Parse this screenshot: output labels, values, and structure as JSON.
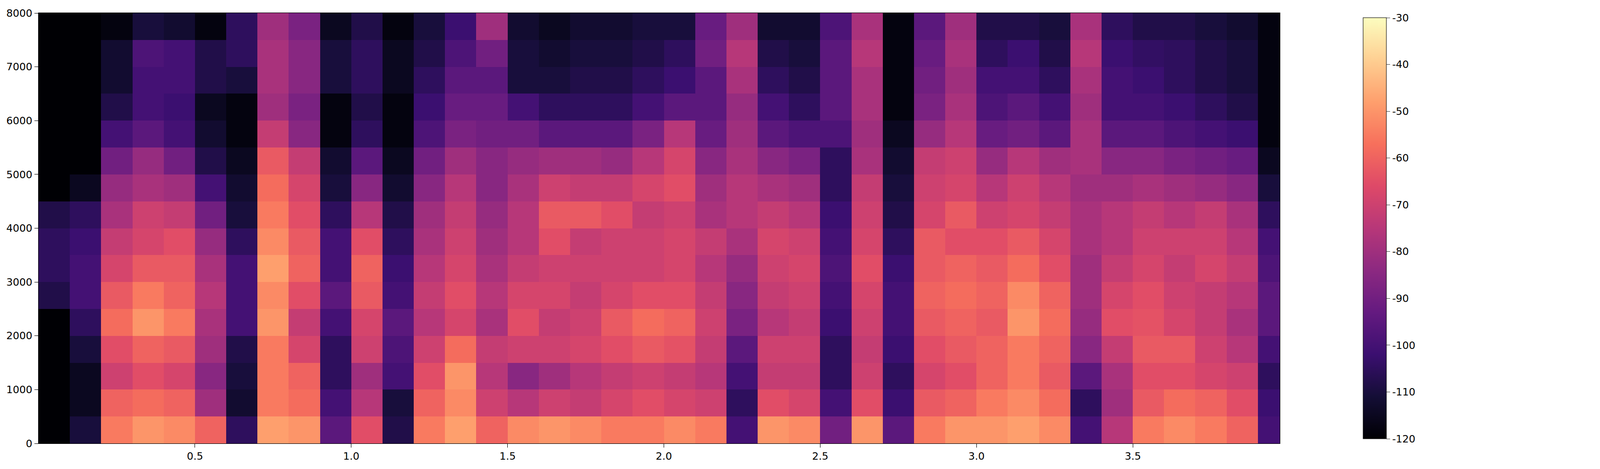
{
  "chart_data": {
    "type": "heatmap",
    "x": [
      0.05,
      0.15,
      0.25,
      0.35,
      0.45,
      0.55,
      0.65,
      0.75,
      0.85,
      0.95,
      1.05,
      1.15,
      1.25,
      1.35,
      1.45,
      1.55,
      1.65,
      1.75,
      1.85,
      1.95,
      2.05,
      2.15,
      2.25,
      2.35,
      2.45,
      2.55,
      2.65,
      2.75,
      2.85,
      2.95,
      3.05,
      3.15,
      3.25,
      3.35,
      3.45,
      3.55,
      3.65,
      3.75,
      3.85,
      3.95
    ],
    "y": [
      250,
      750,
      1250,
      1750,
      2250,
      2750,
      3250,
      3750,
      4250,
      4750,
      5250,
      5750,
      6250,
      6750,
      7250,
      7750
    ],
    "cells": [
      [
        -120,
        -120,
        -120,
        -120,
        -120,
        -108,
        -105,
        -105,
        -108,
        -120,
        -120,
        -120,
        -120,
        -120,
        -120,
        -120
      ],
      [
        -110,
        -115,
        -115,
        -110,
        -105,
        -100,
        -100,
        -102,
        -105,
        -115,
        -120,
        -120,
        -120,
        -120,
        -120,
        -120
      ],
      [
        -55,
        -60,
        -70,
        -65,
        -58,
        -62,
        -68,
        -72,
        -78,
        -82,
        -90,
        -100,
        -108,
        -112,
        -112,
        -118
      ],
      [
        -50,
        -58,
        -65,
        -60,
        -50,
        -55,
        -62,
        -68,
        -70,
        -78,
        -82,
        -95,
        -100,
        -100,
        -98,
        -110
      ],
      [
        -52,
        -60,
        -68,
        -62,
        -55,
        -60,
        -62,
        -65,
        -72,
        -80,
        -90,
        -100,
        -102,
        -100,
        -100,
        -112
      ],
      [
        -60,
        -80,
        -85,
        -80,
        -78,
        -75,
        -78,
        -82,
        -90,
        -100,
        -108,
        -112,
        -115,
        -108,
        -108,
        -118
      ],
      [
        -105,
        -112,
        -110,
        -108,
        -100,
        -100,
        -100,
        -105,
        -110,
        -112,
        -115,
        -118,
        -118,
        -110,
        -105,
        -105
      ],
      [
        -48,
        -55,
        -55,
        -55,
        -50,
        -52,
        -48,
        -52,
        -55,
        -58,
        -62,
        -72,
        -80,
        -78,
        -78,
        -80
      ],
      [
        -50,
        -58,
        -60,
        -68,
        -72,
        -65,
        -60,
        -62,
        -65,
        -68,
        -72,
        -85,
        -88,
        -85,
        -85,
        -88
      ],
      [
        -95,
        -100,
        -105,
        -105,
        -100,
        -95,
        -100,
        -100,
        -105,
        -110,
        -112,
        -118,
        -118,
        -110,
        -110,
        -115
      ],
      [
        -65,
        -75,
        -80,
        -70,
        -68,
        -62,
        -60,
        -65,
        -75,
        -85,
        -95,
        -105,
        -108,
        -105,
        -105,
        -108
      ],
      [
        -108,
        -110,
        -100,
        -98,
        -95,
        -100,
        -102,
        -105,
        -108,
        -112,
        -115,
        -118,
        -118,
        -115,
        -115,
        -118
      ],
      [
        -55,
        -60,
        -65,
        -70,
        -75,
        -72,
        -75,
        -78,
        -80,
        -85,
        -90,
        -98,
        -102,
        -105,
        -108,
        -110
      ],
      [
        -48,
        -52,
        -50,
        -58,
        -68,
        -65,
        -68,
        -70,
        -72,
        -75,
        -80,
        -88,
        -92,
        -95,
        -98,
        -102
      ],
      [
        -60,
        -70,
        -75,
        -72,
        -78,
        -75,
        -78,
        -80,
        -82,
        -85,
        -85,
        -90,
        -92,
        -95,
        -90,
        -80
      ],
      [
        -52,
        -75,
        -85,
        -70,
        -65,
        -68,
        -72,
        -75,
        -75,
        -78,
        -82,
        -90,
        -100,
        -110,
        -110,
        -112
      ],
      [
        -50,
        -70,
        -80,
        -70,
        -72,
        -68,
        -70,
        -65,
        -62,
        -70,
        -80,
        -95,
        -105,
        -110,
        -112,
        -115
      ],
      [
        -52,
        -72,
        -75,
        -68,
        -70,
        -72,
        -70,
        -72,
        -62,
        -72,
        -80,
        -95,
        -105,
        -108,
        -110,
        -112
      ],
      [
        -55,
        -68,
        -72,
        -65,
        -62,
        -68,
        -70,
        -70,
        -65,
        -72,
        -82,
        -95,
        -105,
        -108,
        -110,
        -112
      ],
      [
        -55,
        -65,
        -70,
        -62,
        -58,
        -65,
        -70,
        -70,
        -72,
        -68,
        -75,
        -88,
        -100,
        -105,
        -108,
        -110
      ],
      [
        -52,
        -68,
        -72,
        -64,
        -60,
        -65,
        -68,
        -68,
        -70,
        -65,
        -68,
        -75,
        -95,
        -102,
        -105,
        -110
      ],
      [
        -55,
        -70,
        -75,
        -72,
        -70,
        -72,
        -75,
        -72,
        -78,
        -80,
        -85,
        -92,
        -95,
        -95,
        -90,
        -92
      ],
      [
        -100,
        -105,
        -100,
        -95,
        -88,
        -85,
        -82,
        -78,
        -75,
        -75,
        -78,
        -80,
        -82,
        -78,
        -75,
        -80
      ],
      [
        -50,
        -65,
        -72,
        -70,
        -75,
        -72,
        -70,
        -68,
        -72,
        -78,
        -85,
        -95,
        -100,
        -105,
        -108,
        -112
      ],
      [
        -52,
        -68,
        -72,
        -70,
        -72,
        -70,
        -68,
        -70,
        -75,
        -80,
        -88,
        -98,
        -105,
        -108,
        -110,
        -112
      ],
      [
        -90,
        -100,
        -105,
        -105,
        -102,
        -100,
        -98,
        -100,
        -102,
        -105,
        -105,
        -98,
        -95,
        -95,
        -95,
        -98
      ],
      [
        -50,
        -65,
        -70,
        -72,
        -70,
        -68,
        -65,
        -68,
        -70,
        -72,
        -78,
        -80,
        -78,
        -78,
        -75,
        -78
      ],
      [
        -95,
        -102,
        -105,
        -102,
        -100,
        -100,
        -102,
        -105,
        -108,
        -110,
        -112,
        -115,
        -118,
        -118,
        -118,
        -118
      ],
      [
        -55,
        -62,
        -68,
        -65,
        -62,
        -60,
        -62,
        -62,
        -68,
        -70,
        -72,
        -82,
        -88,
        -90,
        -92,
        -95
      ],
      [
        -50,
        -60,
        -65,
        -62,
        -60,
        -58,
        -60,
        -65,
        -62,
        -68,
        -70,
        -75,
        -78,
        -80,
        -78,
        -80
      ],
      [
        -50,
        -55,
        -60,
        -60,
        -62,
        -60,
        -62,
        -65,
        -70,
        -75,
        -82,
        -92,
        -98,
        -100,
        -105,
        -108
      ],
      [
        -48,
        -52,
        -55,
        -55,
        -50,
        -52,
        -58,
        -62,
        -68,
        -70,
        -75,
        -90,
        -95,
        -100,
        -102,
        -108
      ],
      [
        -52,
        -58,
        -62,
        -60,
        -58,
        -60,
        -65,
        -68,
        -72,
        -75,
        -80,
        -95,
        -100,
        -105,
        -108,
        -110
      ],
      [
        -100,
        -105,
        -95,
        -85,
        -82,
        -80,
        -80,
        -78,
        -78,
        -80,
        -78,
        -78,
        -80,
        -78,
        -75,
        -78
      ],
      [
        -75,
        -80,
        -78,
        -72,
        -65,
        -68,
        -72,
        -75,
        -75,
        -80,
        -85,
        -95,
        -100,
        -100,
        -102,
        -105
      ],
      [
        -55,
        -62,
        -65,
        -62,
        -64,
        -65,
        -68,
        -70,
        -72,
        -78,
        -85,
        -95,
        -100,
        -102,
        -104,
        -108
      ],
      [
        -52,
        -58,
        -65,
        -62,
        -68,
        -70,
        -72,
        -70,
        -75,
        -80,
        -88,
        -98,
        -102,
        -105,
        -105,
        -108
      ],
      [
        -55,
        -60,
        -68,
        -70,
        -72,
        -72,
        -68,
        -70,
        -72,
        -82,
        -90,
        -100,
        -105,
        -108,
        -108,
        -110
      ],
      [
        -60,
        -65,
        -70,
        -75,
        -78,
        -75,
        -72,
        -75,
        -78,
        -85,
        -92,
        -102,
        -108,
        -110,
        -110,
        -112
      ],
      [
        -100,
        -102,
        -105,
        -100,
        -95,
        -95,
        -98,
        -100,
        -105,
        -110,
        -115,
        -118,
        -118,
        -118,
        -118,
        -118
      ]
    ],
    "xlim": [
      0,
      3.97
    ],
    "xticks": [
      0.5,
      {
        "value": 1,
        "label": "1.0"
      },
      1.5,
      {
        "value": 2,
        "label": "2.0"
      },
      2.5,
      {
        "value": 3,
        "label": "3.0"
      },
      3.5
    ],
    "ylim": [
      0,
      8000
    ],
    "yticks": [
      0,
      1000,
      2000,
      3000,
      4000,
      5000,
      6000,
      7000,
      8000
    ],
    "colorbar_range": [
      -120,
      -30
    ],
    "colorbar_ticks": [
      -120,
      -110,
      -100,
      -90,
      -80,
      -70,
      -60,
      -50,
      -40,
      -30
    ],
    "grid": false
  }
}
